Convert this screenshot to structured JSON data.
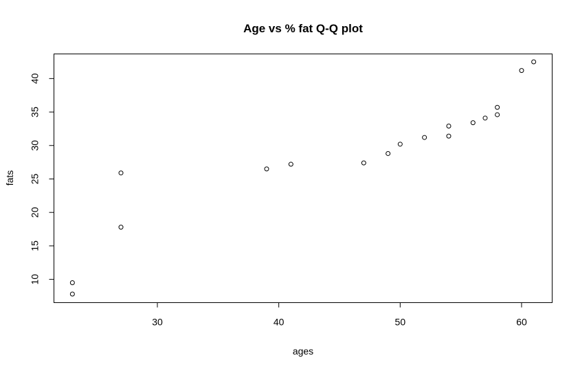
{
  "chart_data": {
    "type": "scatter",
    "title": "Age vs % fat Q-Q plot",
    "xlabel": "ages",
    "ylabel": "fats",
    "xlim": [
      21.48,
      62.52
    ],
    "ylim": [
      6.52,
      43.68
    ],
    "xticks": [
      30,
      40,
      50,
      60
    ],
    "yticks": [
      10,
      15,
      20,
      25,
      30,
      35,
      40
    ],
    "grid": false,
    "legend": "none",
    "points": [
      {
        "x": 23,
        "y": 7.8
      },
      {
        "x": 23,
        "y": 9.5
      },
      {
        "x": 27,
        "y": 17.8
      },
      {
        "x": 27,
        "y": 25.9
      },
      {
        "x": 39,
        "y": 26.5
      },
      {
        "x": 41,
        "y": 27.2
      },
      {
        "x": 47,
        "y": 27.4
      },
      {
        "x": 49,
        "y": 28.8
      },
      {
        "x": 50,
        "y": 30.2
      },
      {
        "x": 52,
        "y": 31.2
      },
      {
        "x": 54,
        "y": 31.4
      },
      {
        "x": 54,
        "y": 32.9
      },
      {
        "x": 56,
        "y": 33.4
      },
      {
        "x": 57,
        "y": 34.1
      },
      {
        "x": 58,
        "y": 34.6
      },
      {
        "x": 58,
        "y": 35.7
      },
      {
        "x": 60,
        "y": 41.2
      },
      {
        "x": 61,
        "y": 42.5
      }
    ]
  }
}
